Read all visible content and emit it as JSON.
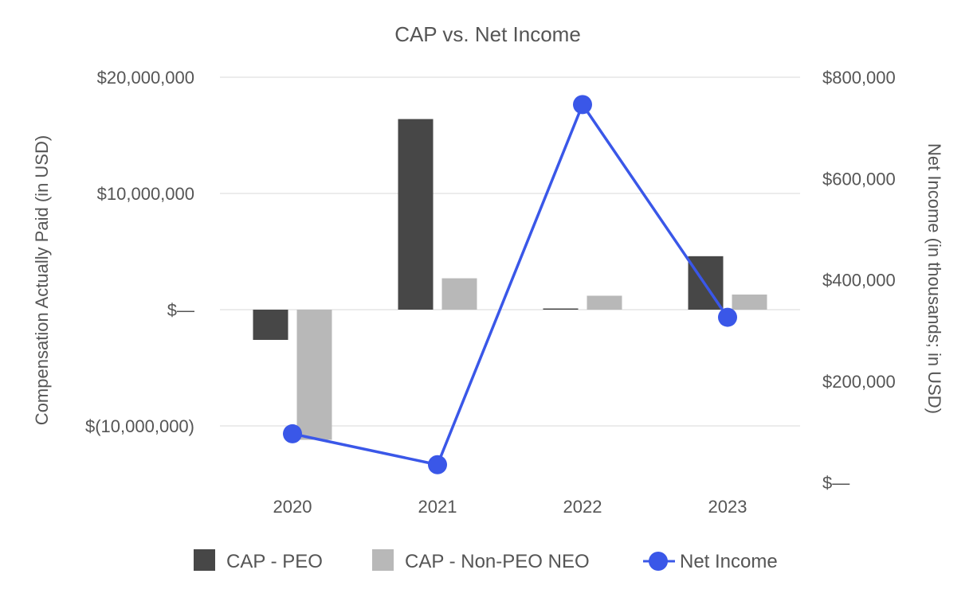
{
  "chart_data": {
    "type": "bar",
    "title": "CAP vs. Net Income",
    "categories": [
      "2020",
      "2021",
      "2022",
      "2023"
    ],
    "series": [
      {
        "name": "CAP - PEO",
        "type": "bar",
        "axis": "left",
        "color": "#474747",
        "values": [
          -2600000,
          16400000,
          100000,
          4600000
        ]
      },
      {
        "name": "CAP - Non-PEO NEO",
        "type": "bar",
        "axis": "left",
        "color": "#b8b8b8",
        "values": [
          -11200000,
          2700000,
          1200000,
          1300000
        ]
      },
      {
        "name": "Net Income",
        "type": "line",
        "axis": "right",
        "color": "#3a57e8",
        "values": [
          96000,
          35000,
          746000,
          326000
        ]
      }
    ],
    "left_axis": {
      "label": "Compensation Actually Paid (in USD)",
      "min": -15000000,
      "max": 20000000,
      "ticks": [
        20000000,
        10000000,
        0,
        -10000000
      ],
      "tick_labels": [
        "$20,000,000",
        "$10,000,000",
        "$—",
        "$(10,000,000)"
      ]
    },
    "right_axis": {
      "label": "Net Income (in thousands; in USD)",
      "min": 0,
      "max": 800000,
      "ticks": [
        800000,
        600000,
        400000,
        200000,
        0
      ],
      "tick_labels": [
        "$800,000",
        "$600,000",
        "$400,000",
        "$200,000",
        "$—"
      ]
    },
    "grid": true,
    "legend_position": "bottom"
  }
}
